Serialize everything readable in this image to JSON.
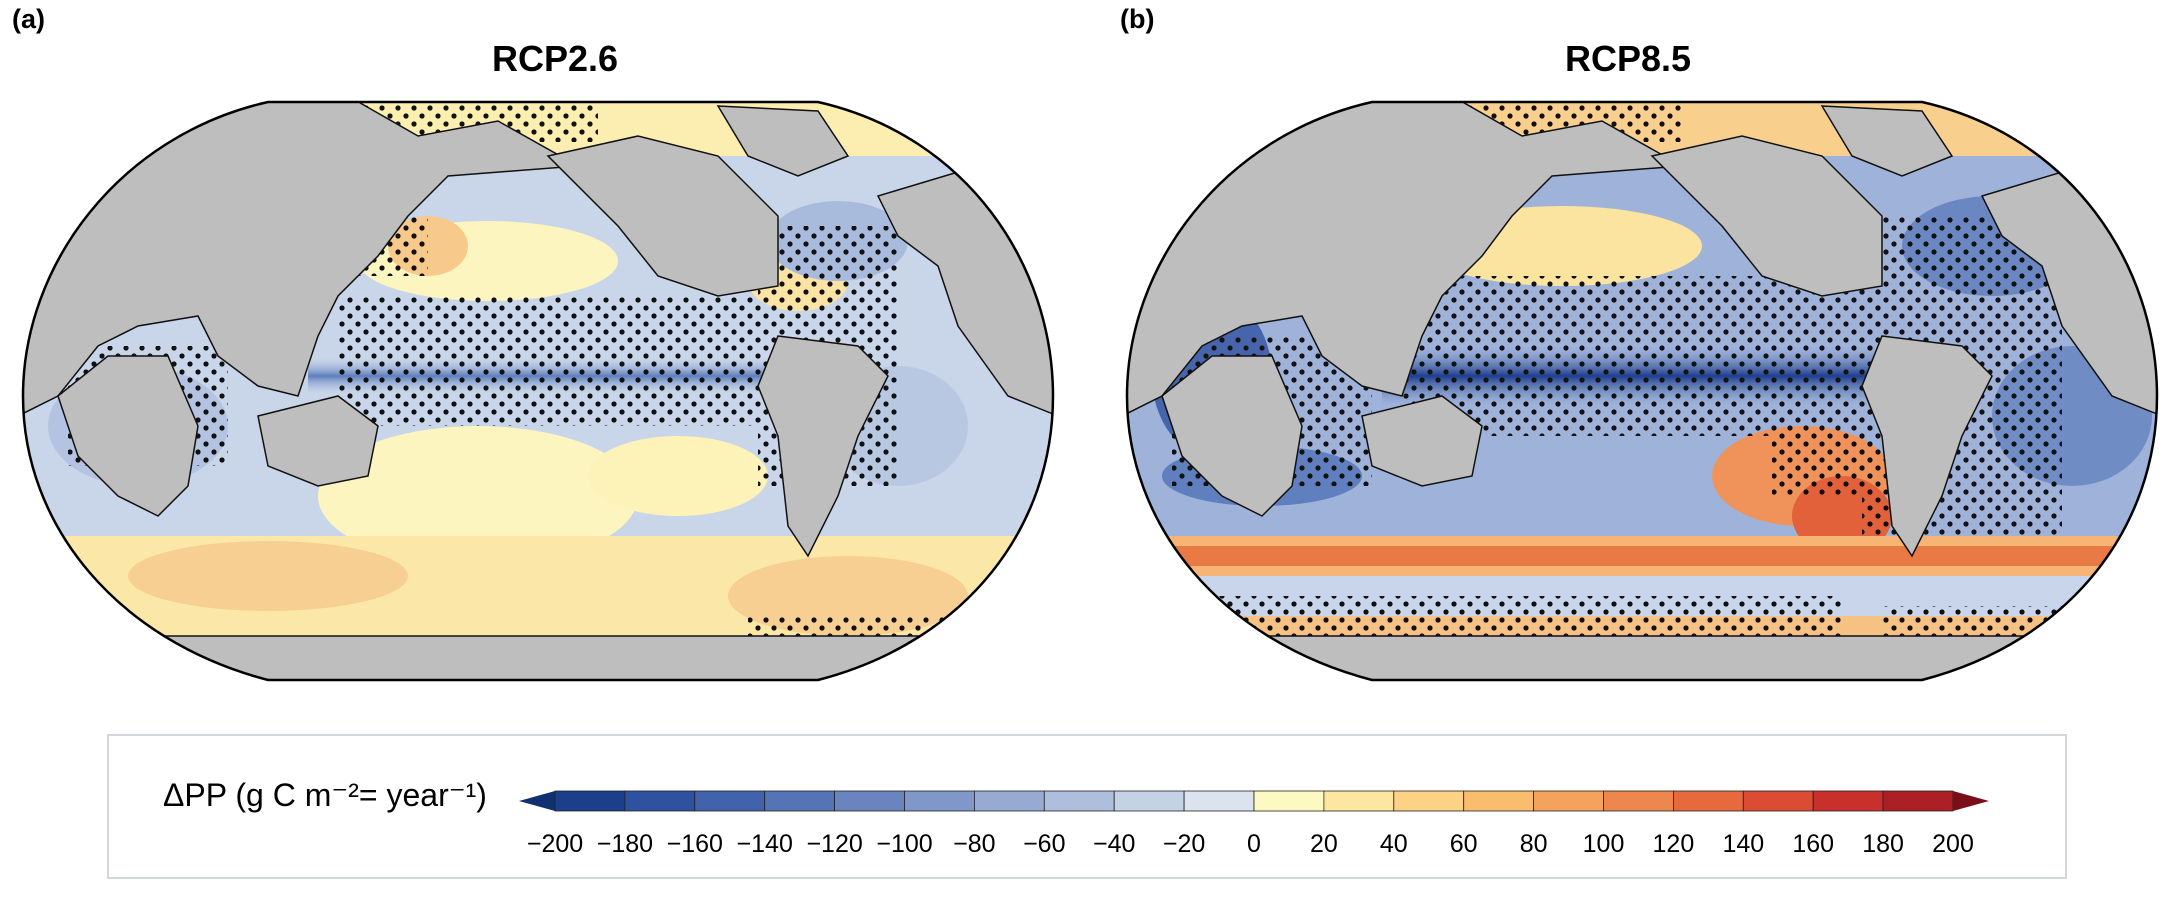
{
  "panels": [
    {
      "letter": "(a)",
      "title": "RCP2.6"
    },
    {
      "letter": "(b)",
      "title": "RCP8.5"
    }
  ],
  "legend": {
    "title": "ΔPP (g C m⁻²= year⁻¹)",
    "ticks": [
      "−200",
      "−180",
      "−160",
      "−140",
      "−120",
      "−100",
      "−80",
      "−60",
      "−40",
      "−20",
      "0",
      "20",
      "40",
      "60",
      "80",
      "100",
      "120",
      "140",
      "160",
      "180",
      "200"
    ],
    "colors": [
      "#1b3f8b",
      "#2f52a0",
      "#4063ab",
      "#5474b5",
      "#6a84bf",
      "#8098c9",
      "#97abd2",
      "#adbfdc",
      "#c4d2e6",
      "#dbe3ef",
      "#fdf9c3",
      "#fde7a0",
      "#fcd385",
      "#f9bd6e",
      "#f5a35c",
      "#ee874d",
      "#e66a3e",
      "#dc4c33",
      "#c9302b",
      "#ad1f27"
    ],
    "arrow_colors": {
      "low": "#10306f",
      "high": "#7a0f1a"
    }
  },
  "colors": {
    "land": "#bebebe",
    "ocean_light_blue": "#c9d6ea",
    "frame_border": "#000000"
  }
}
